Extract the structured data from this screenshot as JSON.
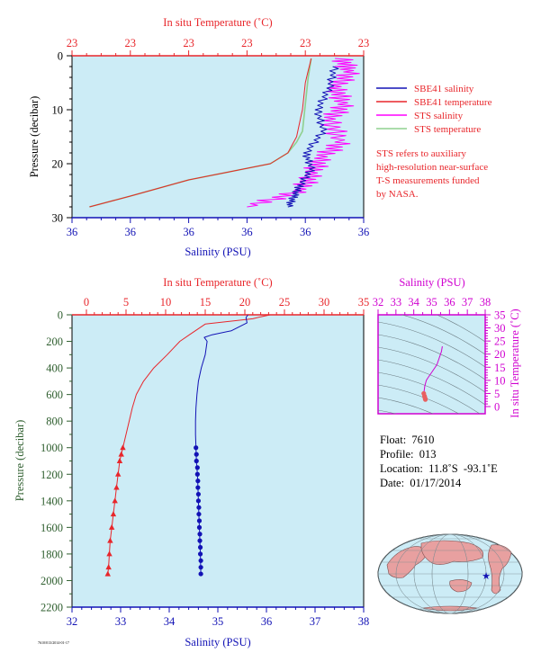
{
  "colors": {
    "plot_bg": "#ccecf6",
    "temperature": "#e8262b",
    "salinity": "#1212b5",
    "sts_salinity": "#ff00ff",
    "sts_temperature": "#8fd08f",
    "axis_red": "#e8262b",
    "axis_blue": "#1212b5",
    "axis_green": "#2e5e2e",
    "axis_magenta": "#d000d0"
  },
  "top_chart": {
    "title_top": "In situ Temperature (˚C)",
    "title_bottom": "Salinity (PSU)",
    "ylabel": "Pressure (decibar)",
    "top_ticks": [
      "23",
      "23",
      "23",
      "23",
      "23",
      "23"
    ],
    "bottom_ticks": [
      "36",
      "36",
      "36",
      "36",
      "36",
      "36"
    ],
    "y_ticks": [
      "0",
      "10",
      "20",
      "30"
    ],
    "legend": [
      "SBE41 salinity",
      "SBE41 temperature",
      "STS salinity",
      "STS temperature"
    ],
    "note": [
      "STS refers to auxiliary",
      "high-resolution near-surface",
      "T-S measurements funded",
      "by NASA."
    ]
  },
  "bottom_chart": {
    "title_top": "In situ Temperature (˚C)",
    "title_bottom": "Salinity (PSU)",
    "ylabel": "Pressure (decibar)",
    "top_ticks": [
      "0",
      "5",
      "10",
      "15",
      "20",
      "25",
      "30",
      "35"
    ],
    "bottom_ticks": [
      "32",
      "33",
      "34",
      "35",
      "36",
      "37",
      "38"
    ],
    "y_ticks": [
      "0",
      "200",
      "400",
      "600",
      "800",
      "1000",
      "1200",
      "1400",
      "1600",
      "1800",
      "2000",
      "2200"
    ]
  },
  "ts_chart": {
    "title": "Salinity (PSU)",
    "ylabel": "In situ Temperature (˚C)",
    "x_ticks": [
      "32",
      "33",
      "34",
      "35",
      "36",
      "37",
      "38"
    ],
    "y_ticks": [
      "0",
      "5",
      "10",
      "15",
      "20",
      "25",
      "30",
      "35"
    ]
  },
  "info": {
    "float": "Float:  7610",
    "profile": "Profile:  013",
    "location": "Location:  11.8˚S  -93.1˚E",
    "date": "Date:  01/17/2014"
  },
  "footer_mark": "7610/013/2014-01-17",
  "chart_data": [
    {
      "type": "line",
      "title": "In situ Temperature (˚C)",
      "xlabel": "Salinity (PSU)",
      "ylabel": "Pressure (decibar)",
      "ylim": [
        30,
        0
      ],
      "y_reversed": true,
      "series": [
        {
          "name": "SBE41 salinity",
          "x": [
            0.9,
            0.88,
            0.84,
            0.86,
            0.8,
            0.82,
            0.78,
            0.76,
            0.74
          ],
          "y": [
            2,
            6,
            10,
            14,
            18,
            21,
            24,
            26,
            28
          ]
        },
        {
          "name": "SBE41 temperature",
          "x": [
            0.82,
            0.8,
            0.79,
            0.77,
            0.74,
            0.68,
            0.4,
            0.2,
            0.06
          ],
          "y": [
            0.5,
            5,
            10,
            15,
            18,
            20,
            23,
            26,
            28
          ]
        },
        {
          "name": "STS salinity",
          "x": [
            0.92,
            0.95,
            0.9,
            0.93,
            0.88,
            0.92,
            0.85,
            0.82,
            0.78,
            0.6
          ],
          "y": [
            0.5,
            3,
            6,
            9,
            12,
            16,
            19,
            22,
            25,
            28
          ]
        },
        {
          "name": "STS temperature",
          "x": [
            0.82,
            0.81,
            0.8,
            0.79,
            0.77,
            0.74,
            0.68,
            0.4,
            0.2,
            0.06
          ],
          "y": [
            0.5,
            4,
            9,
            14,
            16,
            18,
            20,
            23,
            26,
            28
          ]
        }
      ]
    },
    {
      "type": "line",
      "title": "In situ Temperature (˚C)",
      "xlabel": "Salinity (PSU)",
      "ylabel": "Pressure (decibar)",
      "xlim_temperature": [
        0,
        35
      ],
      "xlim_salinity": [
        32,
        38
      ],
      "ylim": [
        2200,
        0
      ],
      "y_reversed": true,
      "series": [
        {
          "name": "SBE41 temperature",
          "x": [
            23.2,
            22.0,
            21.0,
            15.0,
            13.0,
            11.8,
            10.2,
            8.5,
            7.2,
            6.3,
            5.8,
            5.4,
            5.0,
            4.6,
            4.4,
            4.2,
            4.0,
            3.8,
            3.6,
            3.4,
            3.2,
            3.0,
            2.9,
            2.8,
            2.7
          ],
          "y": [
            0,
            15,
            30,
            70,
            150,
            200,
            300,
            400,
            500,
            600,
            700,
            800,
            900,
            1000,
            1050,
            1100,
            1200,
            1300,
            1400,
            1500,
            1600,
            1700,
            1800,
            1900,
            1950
          ]
        },
        {
          "name": "SBE41 salinity",
          "x": [
            35.62,
            35.58,
            35.6,
            35.28,
            34.88,
            34.72,
            34.78,
            34.74,
            34.66,
            34.6,
            34.57,
            34.55,
            34.54,
            34.54,
            34.55,
            34.56,
            34.58,
            34.59,
            34.6,
            34.61,
            34.62,
            34.63,
            34.64,
            34.65
          ],
          "y": [
            0,
            20,
            60,
            120,
            150,
            170,
            200,
            300,
            400,
            500,
            600,
            700,
            800,
            900,
            1000,
            1100,
            1200,
            1300,
            1400,
            1500,
            1600,
            1700,
            1800,
            1950
          ]
        }
      ]
    },
    {
      "type": "line",
      "xlabel": "Salinity (PSU)",
      "ylabel": "In situ Temperature (˚C)",
      "xlim": [
        32,
        38
      ],
      "ylim": [
        -2,
        35
      ],
      "series": [
        {
          "name": "T-S",
          "x": [
            35.6,
            35.55,
            35.3,
            35.0,
            34.8,
            34.7,
            34.62,
            34.58,
            34.56,
            34.6,
            34.62,
            34.64,
            34.65
          ],
          "y": [
            23.0,
            21.0,
            16.0,
            13.0,
            11.0,
            10.0,
            8.0,
            6.0,
            5.0,
            4.0,
            3.5,
            3.0,
            2.7
          ]
        }
      ]
    }
  ]
}
